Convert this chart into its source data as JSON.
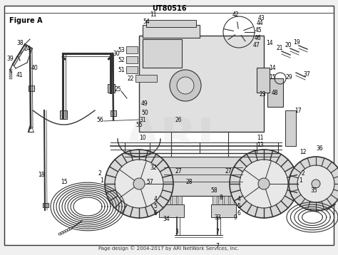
{
  "title": "UT80516",
  "subtitle": "Figure A",
  "footer": "Page design © 2004-2017 by ARI NetWork Services, Inc.",
  "bg_color": "#f0f0f0",
  "inner_bg": "#ffffff",
  "border_color": "#222222",
  "text_color": "#000000",
  "figsize": [
    4.74,
    3.58
  ],
  "dpi": 100,
  "title_fontsize": 7,
  "subtitle_fontsize": 7,
  "footer_fontsize": 5,
  "label_fontsize": 5.5
}
